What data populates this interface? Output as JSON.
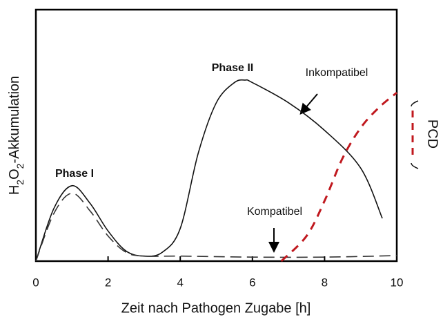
{
  "chart_data": {
    "type": "line",
    "xlabel": "Zeit nach Pathogen Zugabe [h]",
    "ylabel": "H2O2-Akkumulation",
    "xlim": [
      0,
      10
    ],
    "xticks": [
      0,
      2,
      4,
      6,
      8,
      10
    ],
    "ylim": [
      0,
      100
    ],
    "series": [
      {
        "name": "Inkompatibel",
        "color": "#111111",
        "style": "solid",
        "x": [
          0,
          0.5,
          1.0,
          1.5,
          2.0,
          2.5,
          3.0,
          3.5,
          4.0,
          4.5,
          5.0,
          5.5,
          5.8,
          6.0,
          7.0,
          8.0,
          9.0,
          9.6
        ],
        "values": [
          0,
          21,
          30,
          23,
          12,
          4,
          2,
          3.5,
          13,
          43,
          63,
          71,
          72,
          71,
          63,
          52,
          37,
          17
        ]
      },
      {
        "name": "Kompatibel",
        "color": "#333333",
        "style": "dashed",
        "x": [
          0,
          0.5,
          1.0,
          1.5,
          2.0,
          2.5,
          3.0,
          4.0,
          6.0,
          8.0,
          10.0
        ],
        "values": [
          0,
          19,
          27,
          20,
          10,
          3.5,
          2,
          2,
          1.6,
          1.6,
          2.2
        ]
      },
      {
        "name": "PCD",
        "color": "#c0181e",
        "style": "dashed",
        "x": [
          6.8,
          7.5,
          8.0,
          8.5,
          9.0,
          9.5,
          10.0
        ],
        "values": [
          0,
          10,
          24,
          41,
          53,
          61,
          67
        ]
      }
    ],
    "annotations": [
      "Phase I",
      "Phase II"
    ]
  }
}
